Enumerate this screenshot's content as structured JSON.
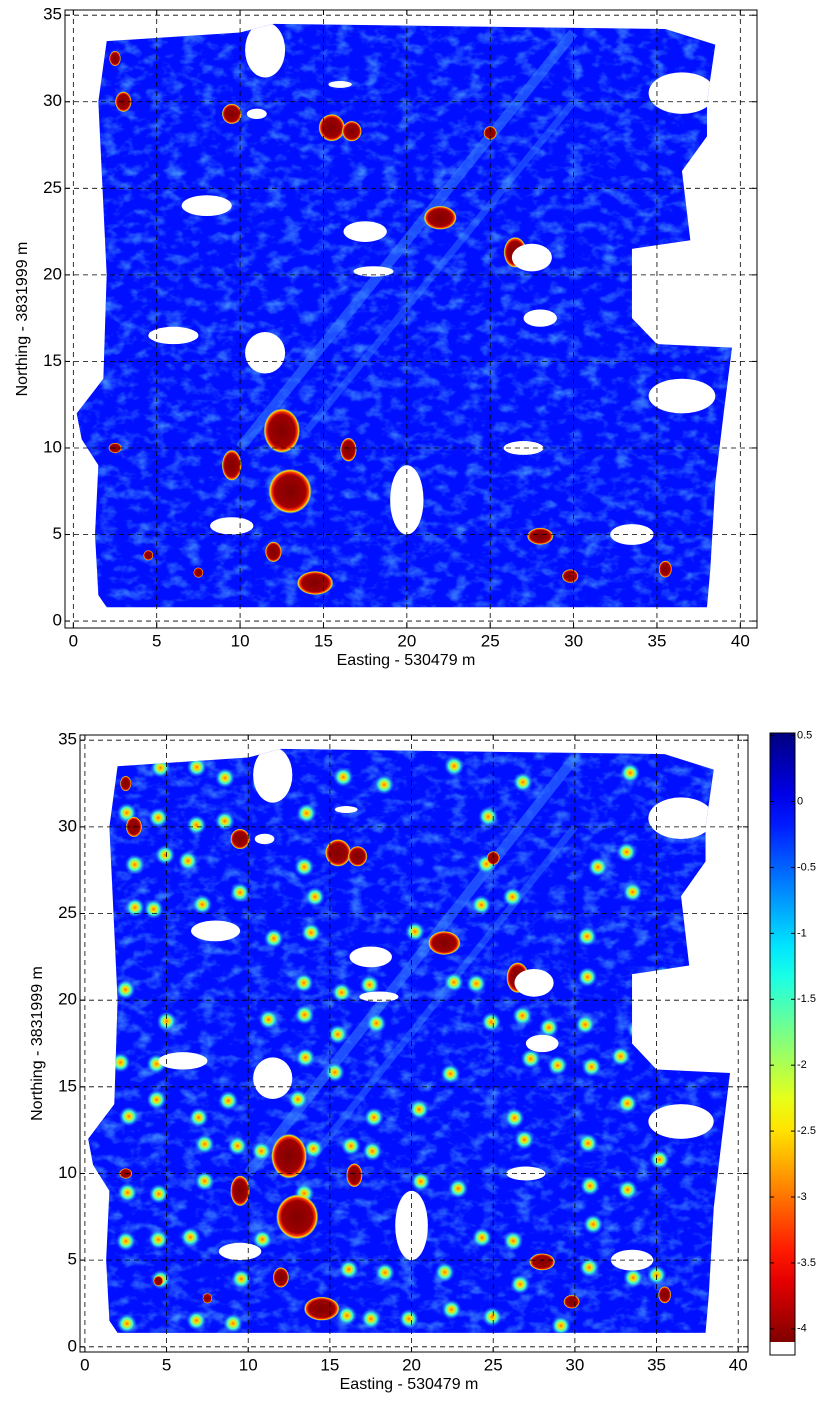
{
  "chart_data": [
    {
      "type": "heatmap",
      "xlabel": "Easting - 530479 m",
      "ylabel": "Northing - 3831999 m",
      "xlim": [
        -0.5,
        41
      ],
      "ylim": [
        -0.4,
        35.3
      ],
      "xticks": [
        0,
        5,
        10,
        15,
        20,
        25,
        30,
        35,
        40
      ],
      "yticks": [
        0,
        5,
        10,
        15,
        20,
        25,
        30,
        35
      ],
      "grid": true,
      "colormap": "jet-reversed"
    },
    {
      "type": "heatmap",
      "xlabel": "Easting - 530479 m",
      "ylabel": "Northing - 3831999 m",
      "xlim": [
        -0.3,
        40.6
      ],
      "ylim": [
        -0.3,
        35.3
      ],
      "xticks": [
        0,
        5,
        10,
        15,
        20,
        25,
        30,
        35,
        40
      ],
      "yticks": [
        0,
        5,
        10,
        15,
        20,
        25,
        30,
        35
      ],
      "grid": true,
      "colormap": "jet-reversed",
      "colorbar": {
        "lim": [
          -4.1,
          0.52
        ],
        "ticks": [
          0.5,
          0,
          -0.5,
          -1,
          -1.5,
          -2,
          -2.5,
          -3,
          -3.5,
          -4
        ]
      }
    }
  ]
}
